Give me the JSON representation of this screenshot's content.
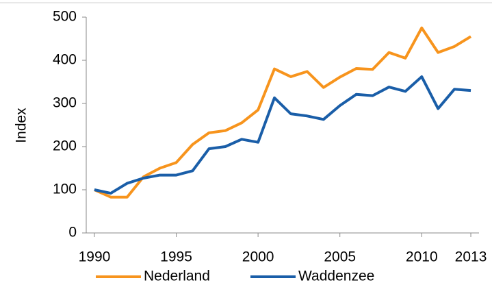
{
  "chart_data": {
    "type": "line",
    "y_label": "Index",
    "x": [
      1990,
      1991,
      1992,
      1993,
      1994,
      1995,
      1996,
      1997,
      1998,
      1999,
      2000,
      2001,
      2002,
      2003,
      2004,
      2005,
      2006,
      2007,
      2008,
      2009,
      2010,
      2011,
      2012,
      2013
    ],
    "series": [
      {
        "name": "Nederland",
        "color": "#f7941d",
        "values": [
          100,
          83,
          83,
          130,
          150,
          163,
          205,
          232,
          237,
          255,
          285,
          380,
          362,
          374,
          337,
          361,
          381,
          379,
          418,
          405,
          475,
          418,
          432,
          455
        ]
      },
      {
        "name": "Waddenzee",
        "color": "#1a5ea8",
        "values": [
          100,
          92,
          115,
          127,
          134,
          134,
          144,
          195,
          200,
          217,
          210,
          313,
          276,
          271,
          263,
          295,
          321,
          318,
          338,
          328,
          362,
          288,
          333,
          330
        ]
      }
    ],
    "xlim": [
      1989.5,
      2013.5
    ],
    "xticks": [
      1990,
      1995,
      2000,
      2005,
      2010,
      2013
    ],
    "ylim": [
      0,
      500
    ],
    "yticks": [
      0,
      100,
      200,
      300,
      400,
      500
    ],
    "legend": "bottom"
  }
}
